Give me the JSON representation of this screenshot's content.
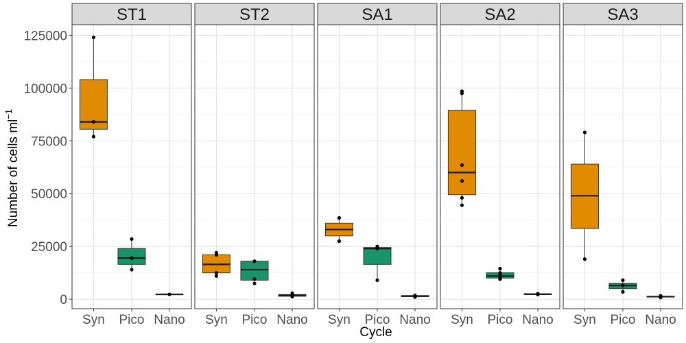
{
  "chart_data": {
    "type": "boxplot",
    "xlabel": "Cycle",
    "ylabel_main": "Number of cells ml",
    "ylabel_sup": "−1",
    "categories": [
      "Syn",
      "Pico",
      "Nano"
    ],
    "yticks": [
      0,
      25000,
      50000,
      75000,
      100000,
      125000
    ],
    "ytick_labels": [
      "0",
      "25000",
      "50000",
      "75000",
      "100000",
      "125000"
    ],
    "ylim": [
      -4500,
      130000
    ],
    "grid": true,
    "colors": {
      "Syn": "#e08b00",
      "Pico": "#17956a",
      "Nano": "#8c6a3a"
    },
    "panels": [
      {
        "name": "ST1",
        "boxes": [
          {
            "category": "Syn",
            "min": 77000,
            "q1": 80500,
            "median": 84000,
            "q3": 104000,
            "max": 124000,
            "points": [
              124000,
              84000,
              77000
            ]
          },
          {
            "category": "Pico",
            "min": 14000,
            "q1": 16500,
            "median": 19500,
            "q3": 24000,
            "max": 28500,
            "points": [
              28500,
              19500,
              14000
            ]
          },
          {
            "category": "Nano",
            "min": 2300,
            "q1": 2300,
            "median": 2300,
            "q3": 2300,
            "max": 2300,
            "points": [
              2300
            ]
          }
        ]
      },
      {
        "name": "ST2",
        "boxes": [
          {
            "category": "Syn",
            "min": 11000,
            "q1": 12500,
            "median": 16500,
            "q3": 21000,
            "max": 22000,
            "points": [
              22000,
              21000,
              12500,
              11000
            ]
          },
          {
            "category": "Pico",
            "min": 7500,
            "q1": 9000,
            "median": 14000,
            "q3": 18000,
            "max": 18000,
            "points": [
              18000,
              9500,
              7500
            ]
          },
          {
            "category": "Nano",
            "min": 1200,
            "q1": 1400,
            "median": 1800,
            "q3": 2200,
            "max": 2800,
            "points": [
              2800,
              1500,
              1200
            ]
          }
        ]
      },
      {
        "name": "SA1",
        "boxes": [
          {
            "category": "Syn",
            "min": 27500,
            "q1": 30000,
            "median": 33000,
            "q3": 36000,
            "max": 38500,
            "points": [
              38500,
              27500
            ]
          },
          {
            "category": "Pico",
            "min": 9000,
            "q1": 16500,
            "median": 24000,
            "q3": 24500,
            "max": 25000,
            "points": [
              25000,
              24000,
              9000
            ]
          },
          {
            "category": "Nano",
            "min": 1000,
            "q1": 1200,
            "median": 1500,
            "q3": 1700,
            "max": 1800,
            "points": [
              1800,
              1000
            ]
          }
        ]
      },
      {
        "name": "SA2",
        "boxes": [
          {
            "category": "Syn",
            "min": 44500,
            "q1": 49500,
            "median": 60000,
            "q3": 89500,
            "max": 98500,
            "points": [
              98500,
              97500,
              63500,
              56000,
              48000,
              44500
            ]
          },
          {
            "category": "Pico",
            "min": 9500,
            "q1": 10000,
            "median": 11000,
            "q3": 12500,
            "max": 14500,
            "points": [
              14500,
              12500,
              11500,
              10500,
              9500
            ]
          },
          {
            "category": "Nano",
            "min": 2000,
            "q1": 2200,
            "median": 2400,
            "q3": 2500,
            "max": 2600,
            "points": [
              2600,
              2200
            ]
          }
        ]
      },
      {
        "name": "SA3",
        "boxes": [
          {
            "category": "Syn",
            "min": 19000,
            "q1": 33500,
            "median": 49000,
            "q3": 64000,
            "max": 79000,
            "points": [
              79000,
              19000
            ]
          },
          {
            "category": "Pico",
            "min": 3500,
            "q1": 5000,
            "median": 6500,
            "q3": 7500,
            "max": 9000,
            "points": [
              9000,
              6500,
              3500
            ]
          },
          {
            "category": "Nano",
            "min": 800,
            "q1": 1000,
            "median": 1200,
            "q3": 1400,
            "max": 1600,
            "points": [
              1600,
              800
            ]
          }
        ]
      }
    ]
  }
}
